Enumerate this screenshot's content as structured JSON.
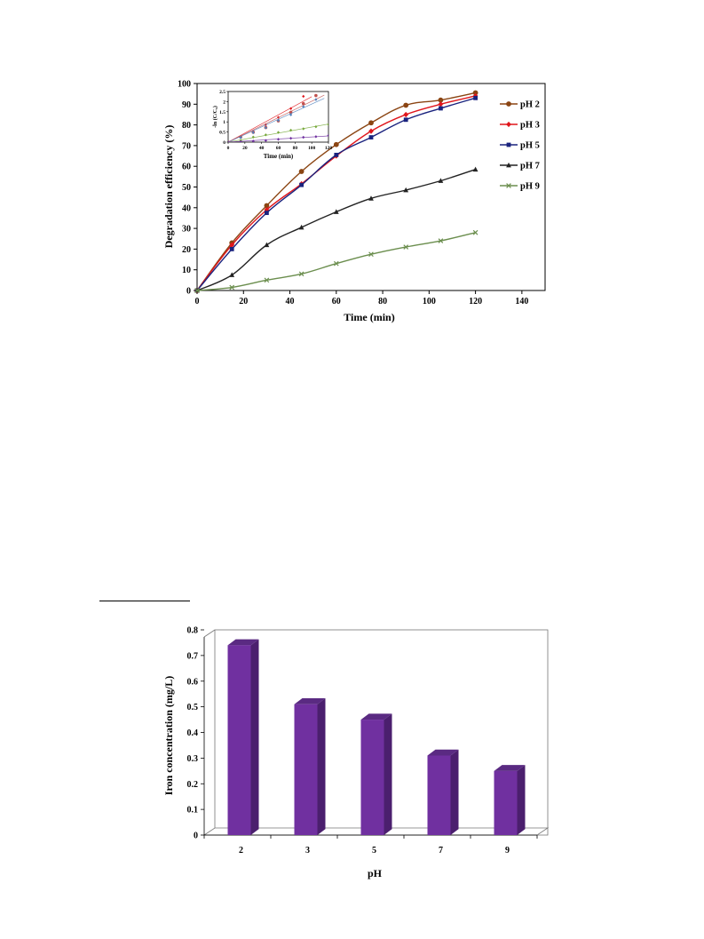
{
  "chart_data": [
    {
      "type": "line",
      "title": "",
      "xlabel": "Time (min)",
      "ylabel": "Degradation efficiency (%)",
      "xlim": [
        0,
        150
      ],
      "ylim": [
        0,
        100
      ],
      "x_ticks": [
        0,
        20,
        40,
        60,
        80,
        100,
        120,
        140
      ],
      "y_ticks": [
        0,
        10,
        20,
        30,
        40,
        50,
        60,
        70,
        80,
        90,
        100
      ],
      "x": [
        0,
        15,
        30,
        45,
        60,
        75,
        90,
        105,
        120
      ],
      "legend_position": "right",
      "grid": false,
      "series": [
        {
          "name": "pH 2",
          "color": "#8B4513",
          "marker": "circle",
          "values": [
            0,
            23,
            41,
            57.5,
            70.5,
            81,
            89.5,
            92,
            95.5
          ]
        },
        {
          "name": "pH 3",
          "color": "#e0161c",
          "marker": "diamond",
          "values": [
            0,
            22,
            39,
            51.5,
            65,
            77,
            85,
            90,
            94
          ]
        },
        {
          "name": "pH 5",
          "color": "#1a237e",
          "marker": "square",
          "values": [
            0,
            20,
            37.5,
            51,
            65.5,
            74,
            82.5,
            88,
            93
          ]
        },
        {
          "name": "pH 7",
          "color": "#222222",
          "marker": "triangle",
          "values": [
            0,
            7.5,
            22,
            30.5,
            38,
            44.5,
            48.5,
            53,
            58.5
          ]
        },
        {
          "name": "pH 9",
          "color": "#6b8e4e",
          "marker": "cross",
          "values": [
            0,
            1.5,
            5,
            8,
            13,
            17.5,
            21,
            24,
            28
          ]
        }
      ],
      "inset": {
        "xlabel": "Time (min)",
        "ylabel": "-ln (C/C₀)",
        "xlim": [
          0,
          120
        ],
        "ylim": [
          0,
          2.5
        ],
        "x_ticks": [
          0,
          20,
          40,
          60,
          80,
          100,
          120
        ],
        "y_ticks": [
          0,
          0.5,
          1,
          1.5,
          2,
          2.5
        ],
        "x": [
          0,
          15,
          30,
          45,
          60,
          75,
          90,
          105,
          120
        ],
        "series": [
          {
            "name": "pH 2",
            "color": "#e0161c",
            "marker": "diamond",
            "values": [
              0,
              0.26,
              0.53,
              0.86,
              1.22,
              1.66,
              2.26
            ]
          },
          {
            "name": "pH 3",
            "color": "#c0504d",
            "marker": "circle",
            "values": [
              0,
              0.25,
              0.49,
              0.72,
              1.05,
              1.47,
              1.9,
              2.3
            ]
          },
          {
            "name": "pH 5",
            "color": "#4f81bd",
            "marker": "diamond",
            "values": [
              0,
              0.22,
              0.47,
              0.71,
              1.07,
              1.35,
              1.75,
              2.1
            ]
          },
          {
            "name": "pH 7",
            "color": "#77a93b",
            "marker": "diamond",
            "values": [
              0,
              0.08,
              0.25,
              0.36,
              0.48,
              0.59,
              0.66,
              0.76,
              0.87
            ]
          },
          {
            "name": "pH 9",
            "color": "#7030a0",
            "marker": "diamond",
            "values": [
              0,
              0.02,
              0.05,
              0.08,
              0.14,
              0.19,
              0.24,
              0.27,
              0.33
            ]
          }
        ]
      }
    },
    {
      "type": "bar",
      "title": "",
      "xlabel": "pH",
      "ylabel": "Iron concentration (mg/L)",
      "categories": [
        "2",
        "3",
        "5",
        "7",
        "9"
      ],
      "values": [
        0.74,
        0.51,
        0.45,
        0.31,
        0.25
      ],
      "ylim": [
        0,
        0.8
      ],
      "y_ticks": [
        "0",
        "0.1",
        "0.2",
        "0.3",
        "0.4",
        "0.5",
        "0.6",
        "0.7",
        "0.8"
      ],
      "bar_color": "#7030a0",
      "grid": false
    }
  ]
}
